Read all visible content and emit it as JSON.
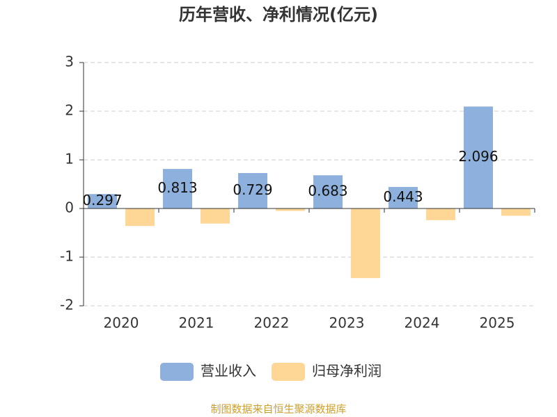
{
  "chart_data": {
    "type": "bar",
    "title": "历年营收、净利情况(亿元)",
    "categories": [
      "2020",
      "2021",
      "2022",
      "2023",
      "2024",
      "2025"
    ],
    "series": [
      {
        "name": "营业收入",
        "color": "#8eb0dc",
        "values": [
          0.297,
          0.813,
          0.729,
          0.683,
          0.443,
          2.096
        ],
        "show_labels": true
      },
      {
        "name": "归母净利润",
        "color": "#fed797",
        "values": [
          -0.36,
          -0.31,
          -0.05,
          -1.43,
          -0.24,
          -0.15
        ],
        "show_labels": false
      }
    ],
    "ylim": [
      -2,
      3
    ],
    "yticks": [
      -2,
      -1,
      0,
      1,
      2,
      3
    ],
    "grid": true,
    "legend": "bottom",
    "source": "制图数据来自恒生聚源数据库"
  }
}
